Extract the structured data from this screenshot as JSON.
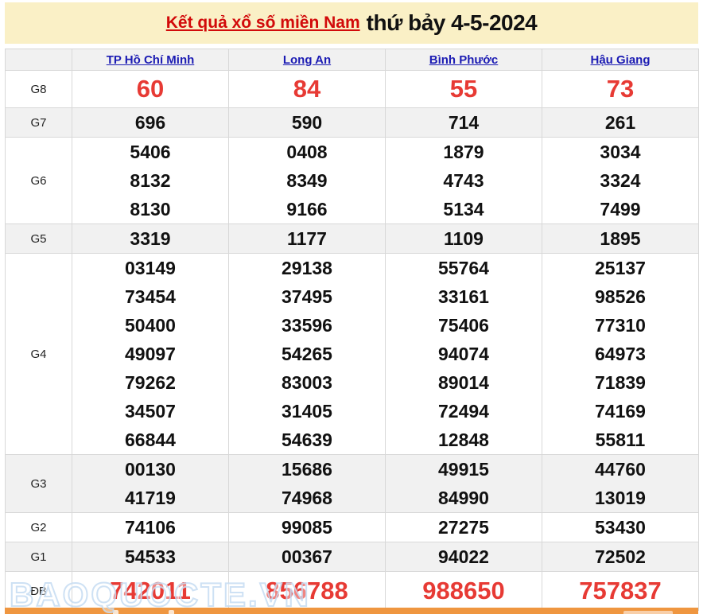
{
  "title": {
    "link": "Kết quả xổ số miền Nam",
    "suffix": "thứ bảy 4-5-2024"
  },
  "watermark": "BAOQUOCTE.VN",
  "colors": {
    "title_background": "#faf0c6",
    "title_link_red": "#d20a0a",
    "header_link_blue": "#1b1bb3",
    "highlight_number_red": "#e73a34",
    "row_stripe_gray": "#f1f1f1",
    "bottom_bar_orange": "#ef9640"
  },
  "table": {
    "provinces": [
      "TP Hồ Chí Minh",
      "Long An",
      "Bình Phước",
      "Hậu Giang"
    ],
    "rows": [
      {
        "label": "G8",
        "highlight": true,
        "values": [
          [
            "60"
          ],
          [
            "84"
          ],
          [
            "55"
          ],
          [
            "73"
          ]
        ]
      },
      {
        "label": "G7",
        "values": [
          [
            "696"
          ],
          [
            "590"
          ],
          [
            "714"
          ],
          [
            "261"
          ]
        ]
      },
      {
        "label": "G6",
        "values": [
          [
            "5406",
            "8132",
            "8130"
          ],
          [
            "0408",
            "8349",
            "9166"
          ],
          [
            "1879",
            "4743",
            "5134"
          ],
          [
            "3034",
            "3324",
            "7499"
          ]
        ]
      },
      {
        "label": "G5",
        "values": [
          [
            "3319"
          ],
          [
            "1177"
          ],
          [
            "1109"
          ],
          [
            "1895"
          ]
        ]
      },
      {
        "label": "G4",
        "values": [
          [
            "03149",
            "73454",
            "50400",
            "49097",
            "79262",
            "34507",
            "66844"
          ],
          [
            "29138",
            "37495",
            "33596",
            "54265",
            "83003",
            "31405",
            "54639"
          ],
          [
            "55764",
            "33161",
            "75406",
            "94074",
            "89014",
            "72494",
            "12848"
          ],
          [
            "25137",
            "98526",
            "77310",
            "64973",
            "71839",
            "74169",
            "55811"
          ]
        ]
      },
      {
        "label": "G3",
        "values": [
          [
            "00130",
            "41719"
          ],
          [
            "15686",
            "74968"
          ],
          [
            "49915",
            "84990"
          ],
          [
            "44760",
            "13019"
          ]
        ]
      },
      {
        "label": "G2",
        "values": [
          [
            "74106"
          ],
          [
            "99085"
          ],
          [
            "27275"
          ],
          [
            "53430"
          ]
        ]
      },
      {
        "label": "G1",
        "values": [
          [
            "54533"
          ],
          [
            "00367"
          ],
          [
            "94022"
          ],
          [
            "72502"
          ]
        ]
      },
      {
        "label": "ĐB",
        "highlight": true,
        "special": true,
        "values": [
          [
            "742011"
          ],
          [
            "856788"
          ],
          [
            "988650"
          ],
          [
            "757837"
          ]
        ]
      }
    ]
  }
}
